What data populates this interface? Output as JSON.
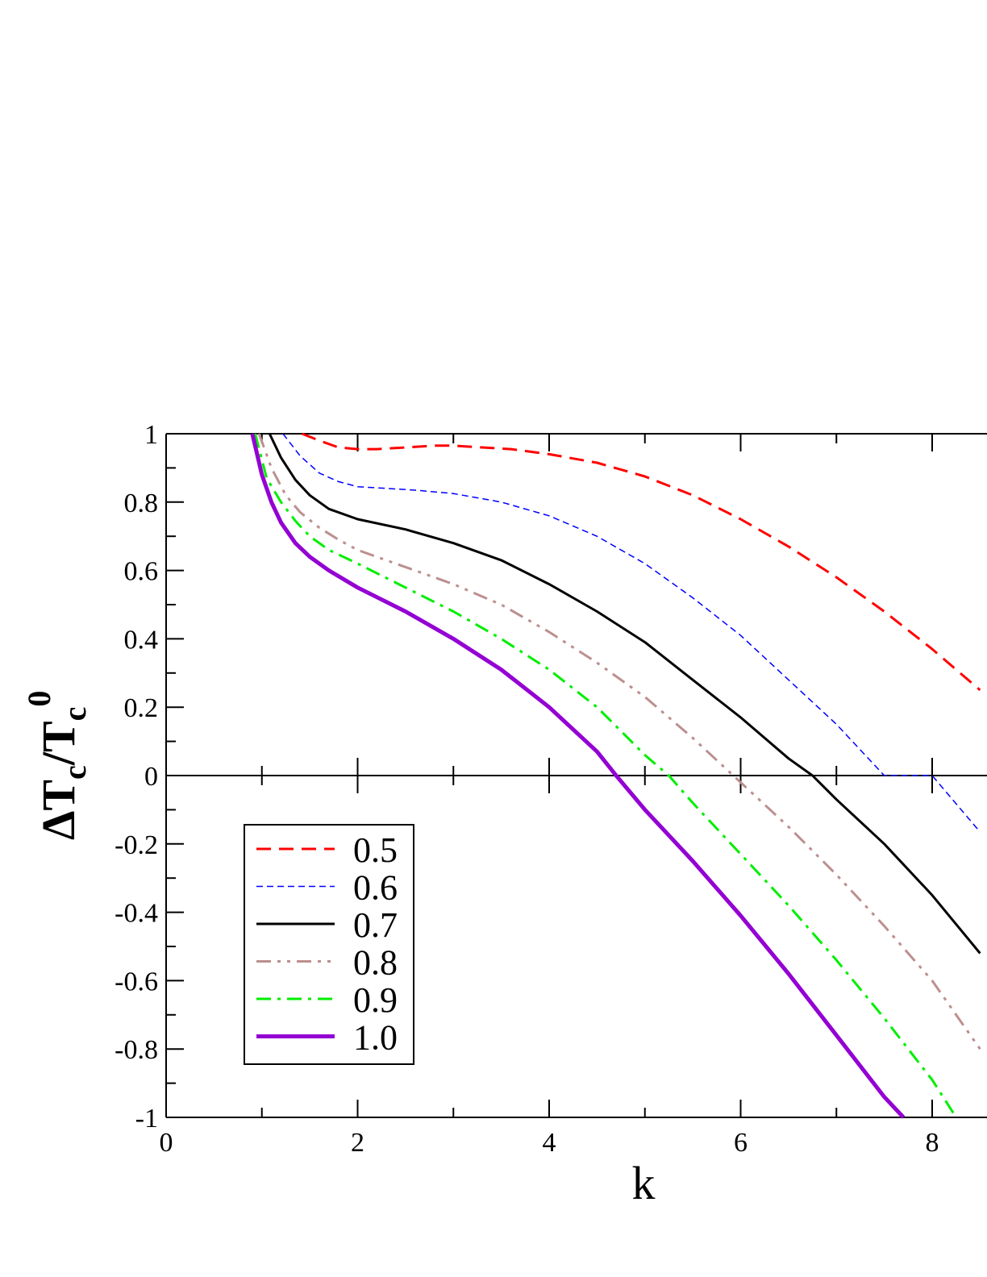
{
  "chart_data": {
    "type": "line",
    "xlabel": "k",
    "ylabel": {
      "main": "ΔT",
      "sub1": "c",
      "slash": "/T",
      "sub2": "c",
      "sup": "0"
    },
    "xlim": [
      0,
      8.5
    ],
    "ylim": [
      -1,
      1
    ],
    "x_ticks": [
      0,
      2,
      4,
      6,
      8
    ],
    "x_tick_labels": [
      "0",
      "2",
      "4",
      "6",
      "8"
    ],
    "y_ticks": [
      1,
      0.8,
      0.6,
      0.4,
      0.2,
      0,
      -0.2,
      -0.4,
      -0.6,
      -0.8,
      -1
    ],
    "y_tick_labels": [
      "1",
      "0.8",
      "0.6",
      "0.4",
      "0.2",
      "0",
      "-0.2",
      "-0.4",
      "-0.6",
      "-0.8",
      "-1"
    ],
    "grid": false,
    "zero_line": true,
    "legend_position": "bottom-left",
    "series": [
      {
        "name": "0.5",
        "color": "#ff0000",
        "style": "dashed",
        "x": [
          1.42,
          1.6,
          1.8,
          2.0,
          2.2,
          2.5,
          2.8,
          3.0,
          3.3,
          3.6,
          4.0,
          4.5,
          5.0,
          5.5,
          6.0,
          6.5,
          7.0,
          7.5,
          8.0,
          8.5
        ],
        "y": [
          1.0,
          0.98,
          0.96,
          0.955,
          0.955,
          0.96,
          0.965,
          0.965,
          0.96,
          0.955,
          0.94,
          0.915,
          0.875,
          0.82,
          0.75,
          0.67,
          0.58,
          0.48,
          0.37,
          0.25
        ]
      },
      {
        "name": "0.6",
        "color": "#0000ff",
        "style": "short-dashed",
        "x": [
          1.22,
          1.4,
          1.6,
          1.8,
          2.0,
          2.3,
          2.6,
          3.0,
          3.5,
          4.0,
          4.5,
          5.0,
          5.5,
          6.0,
          6.5,
          7.0,
          7.5,
          8.0,
          8.5
        ],
        "y": [
          1.0,
          0.935,
          0.885,
          0.86,
          0.845,
          0.84,
          0.835,
          0.825,
          0.8,
          0.76,
          0.7,
          0.62,
          0.52,
          0.41,
          0.28,
          0.15,
          0.0,
          0.0,
          -0.165
        ]
      },
      {
        "name": "0.7",
        "color": "#000000",
        "style": "solid",
        "x": [
          1.08,
          1.2,
          1.35,
          1.5,
          1.7,
          2.0,
          2.5,
          3.0,
          3.5,
          4.0,
          4.5,
          5.0,
          5.5,
          6.0,
          6.5,
          6.75,
          7.0,
          7.5,
          8.0,
          8.5
        ],
        "y": [
          1.0,
          0.93,
          0.865,
          0.82,
          0.78,
          0.75,
          0.72,
          0.68,
          0.63,
          0.56,
          0.48,
          0.39,
          0.28,
          0.17,
          0.05,
          0.0,
          -0.07,
          -0.2,
          -0.35,
          -0.52
        ]
      },
      {
        "name": "0.8",
        "color": "#bc8f8f",
        "style": "dash-dot-dot",
        "x": [
          0.97,
          1.1,
          1.25,
          1.4,
          1.6,
          1.8,
          2.0,
          2.5,
          3.0,
          3.5,
          4.0,
          4.5,
          5.0,
          5.5,
          6.0,
          6.5,
          7.0,
          7.5,
          8.0,
          8.5
        ],
        "y": [
          1.0,
          0.9,
          0.82,
          0.77,
          0.725,
          0.69,
          0.66,
          0.61,
          0.56,
          0.5,
          0.42,
          0.33,
          0.23,
          0.11,
          -0.02,
          -0.15,
          -0.29,
          -0.44,
          -0.6,
          -0.8
        ]
      },
      {
        "name": "0.9",
        "color": "#00ee00",
        "style": "dash-dot",
        "x": [
          0.93,
          1.05,
          1.2,
          1.35,
          1.5,
          1.7,
          2.0,
          2.5,
          3.0,
          3.5,
          4.0,
          4.5,
          5.0,
          5.25,
          5.5,
          6.0,
          6.5,
          7.0,
          7.5,
          8.0,
          8.25
        ],
        "y": [
          1.0,
          0.87,
          0.8,
          0.745,
          0.7,
          0.66,
          0.62,
          0.55,
          0.48,
          0.4,
          0.31,
          0.2,
          0.06,
          0.0,
          -0.08,
          -0.23,
          -0.38,
          -0.54,
          -0.71,
          -0.89,
          -1.0
        ]
      },
      {
        "name": "1.0",
        "color": "#9400d3",
        "style": "solid-thick",
        "x": [
          0.9,
          1.0,
          1.1,
          1.2,
          1.35,
          1.5,
          1.7,
          2.0,
          2.5,
          3.0,
          3.5,
          4.0,
          4.5,
          4.7,
          5.0,
          5.5,
          6.0,
          6.5,
          7.0,
          7.5,
          7.7
        ],
        "y": [
          1.0,
          0.88,
          0.8,
          0.74,
          0.68,
          0.64,
          0.6,
          0.55,
          0.48,
          0.4,
          0.31,
          0.2,
          0.07,
          0.0,
          -0.1,
          -0.25,
          -0.41,
          -0.58,
          -0.76,
          -0.94,
          -1.0
        ]
      }
    ]
  }
}
